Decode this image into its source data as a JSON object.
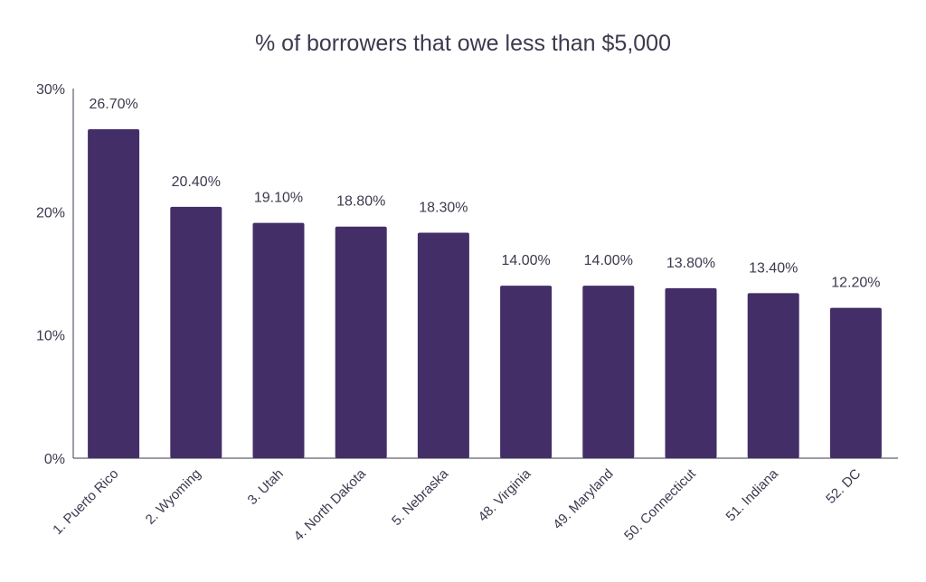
{
  "chart_data": {
    "type": "bar",
    "title": "% of borrowers that owe less than $5,000",
    "categories": [
      "1. Puerto Rico",
      "2. Wyoming",
      "3. Utah",
      "4. North Dakota",
      "5. Nebraska",
      "48. Virginia",
      "49. Maryland",
      "50. Connecticut",
      "51. Indiana",
      "52. DC"
    ],
    "values": [
      26.7,
      20.4,
      19.1,
      18.8,
      18.3,
      14.0,
      14.0,
      13.8,
      13.4,
      12.2
    ],
    "data_labels": [
      "26.70%",
      "20.40%",
      "19.10%",
      "18.80%",
      "18.30%",
      "14.00%",
      "14.00%",
      "13.80%",
      "13.40%",
      "12.20%"
    ],
    "ylim": [
      0,
      30
    ],
    "yticks": [
      "0%",
      "10%",
      "20%",
      "30%"
    ],
    "grid": false,
    "bar_color": "#432e68",
    "xlabel": "",
    "ylabel": ""
  }
}
